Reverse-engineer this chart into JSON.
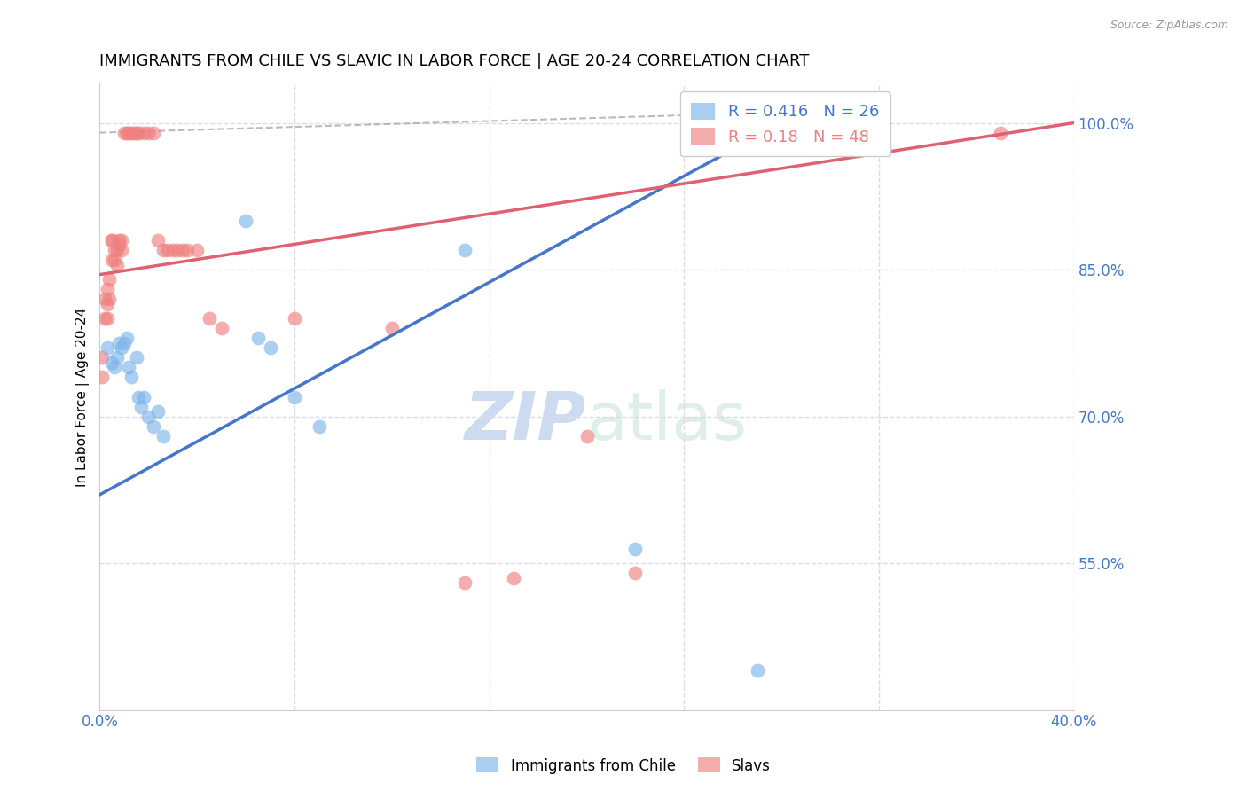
{
  "title": "IMMIGRANTS FROM CHILE VS SLAVIC IN LABOR FORCE | AGE 20-24 CORRELATION CHART",
  "source": "Source: ZipAtlas.com",
  "ylabel": "In Labor Force | Age 20-24",
  "xlim": [
    0.0,
    0.4
  ],
  "ylim": [
    0.4,
    1.04
  ],
  "xticks": [
    0.0,
    0.08,
    0.16,
    0.24,
    0.32,
    0.4
  ],
  "xtick_labels": [
    "0.0%",
    "",
    "",
    "",
    "",
    "40.0%"
  ],
  "yticks": [
    0.55,
    0.7,
    0.85,
    1.0
  ],
  "ytick_labels": [
    "55.0%",
    "70.0%",
    "85.0%",
    "100.0%"
  ],
  "chile_color": "#7EB6E8",
  "slavic_color": "#F08080",
  "chile_R": 0.416,
  "chile_N": 26,
  "slavic_R": 0.18,
  "slavic_N": 48,
  "watermark_zip": "ZIP",
  "watermark_atlas": "atlas",
  "chile_line_x0": 0.0,
  "chile_line_y0": 0.62,
  "chile_line_x1": 0.28,
  "chile_line_y1": 1.0,
  "slavic_line_x0": 0.0,
  "slavic_line_y0": 0.845,
  "slavic_line_x1": 0.4,
  "slavic_line_y1": 1.0,
  "ref_line_x0": 0.0,
  "ref_line_y0": 0.99,
  "ref_line_x1": 0.27,
  "ref_line_y1": 1.01,
  "chile_points_x": [
    0.003,
    0.005,
    0.006,
    0.007,
    0.008,
    0.009,
    0.01,
    0.011,
    0.012,
    0.013,
    0.015,
    0.016,
    0.017,
    0.018,
    0.02,
    0.022,
    0.024,
    0.026,
    0.06,
    0.065,
    0.07,
    0.08,
    0.09,
    0.15,
    0.22,
    0.27
  ],
  "chile_points_y": [
    0.77,
    0.755,
    0.75,
    0.76,
    0.775,
    0.77,
    0.775,
    0.78,
    0.75,
    0.74,
    0.76,
    0.72,
    0.71,
    0.72,
    0.7,
    0.69,
    0.705,
    0.68,
    0.9,
    0.78,
    0.77,
    0.72,
    0.69,
    0.87,
    0.565,
    0.44
  ],
  "slavic_points_x": [
    0.001,
    0.001,
    0.002,
    0.002,
    0.003,
    0.003,
    0.003,
    0.004,
    0.004,
    0.005,
    0.005,
    0.005,
    0.006,
    0.006,
    0.007,
    0.007,
    0.008,
    0.008,
    0.009,
    0.009,
    0.01,
    0.011,
    0.012,
    0.013,
    0.014,
    0.015,
    0.016,
    0.018,
    0.02,
    0.022,
    0.024,
    0.026,
    0.028,
    0.03,
    0.032,
    0.034,
    0.036,
    0.04,
    0.045,
    0.05,
    0.08,
    0.12,
    0.15,
    0.17,
    0.2,
    0.22,
    0.3,
    0.37
  ],
  "slavic_points_y": [
    0.76,
    0.74,
    0.82,
    0.8,
    0.83,
    0.815,
    0.8,
    0.82,
    0.84,
    0.88,
    0.88,
    0.86,
    0.87,
    0.86,
    0.87,
    0.855,
    0.88,
    0.875,
    0.88,
    0.87,
    0.99,
    0.99,
    0.99,
    0.99,
    0.99,
    0.99,
    0.99,
    0.99,
    0.99,
    0.99,
    0.88,
    0.87,
    0.87,
    0.87,
    0.87,
    0.87,
    0.87,
    0.87,
    0.8,
    0.79,
    0.8,
    0.79,
    0.53,
    0.535,
    0.68,
    0.54,
    0.99,
    0.99
  ],
  "bg_color": "#FFFFFF",
  "grid_color": "#DCDCE8",
  "title_fontsize": 13,
  "axis_label_color": "#4477CC",
  "tick_label_color": "#4477CC"
}
